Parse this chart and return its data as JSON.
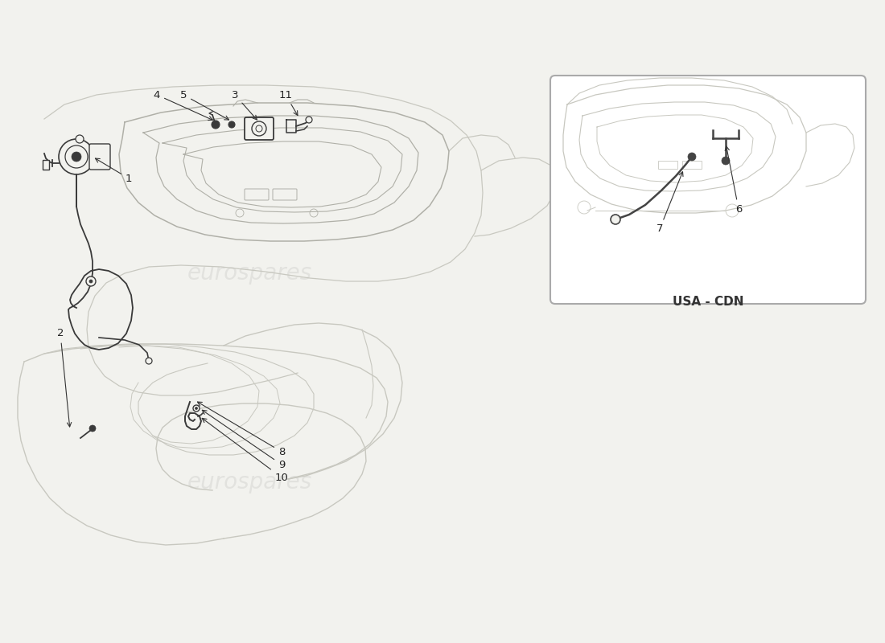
{
  "bg_color": "#f2f2ee",
  "line_color": "#3a3a3a",
  "light_line_color": "#c8c8c0",
  "med_line_color": "#b0b0a8",
  "watermark_text": "eurospares",
  "usa_cdn_label": "USA - CDN",
  "fig_width": 11.0,
  "fig_height": 8.0,
  "dpi": 100,
  "label_fontsize": 9.5,
  "watermark_alpha": 0.15,
  "watermark_fontsize": 20
}
